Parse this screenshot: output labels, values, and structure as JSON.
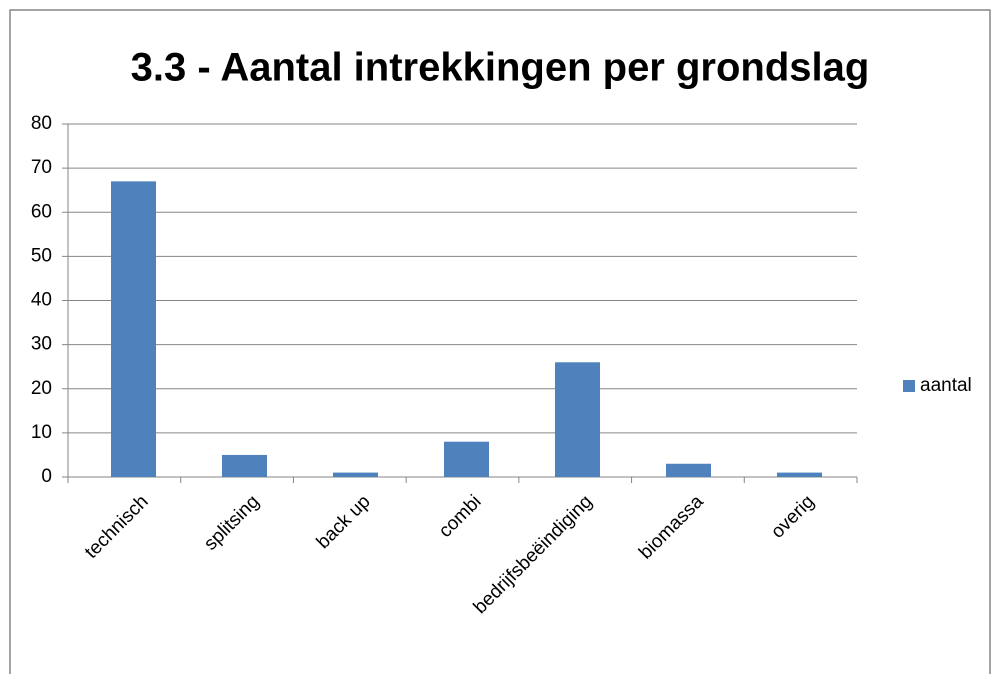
{
  "chart_data": {
    "type": "bar",
    "title": "3.3 - Aantal intrekkingen per grondslag",
    "categories": [
      "technisch",
      "splitsing",
      "back up",
      "combi",
      "bedrijfsbeëindiging",
      "biomassa",
      "overig"
    ],
    "series": [
      {
        "name": "aantal",
        "color": "#4f81bd",
        "values": [
          67,
          5,
          1,
          8,
          26,
          3,
          1
        ]
      }
    ],
    "ylim": [
      0,
      80
    ],
    "yticks": [
      0,
      10,
      20,
      30,
      40,
      50,
      60,
      70,
      80
    ],
    "grid": true,
    "legend": "right"
  }
}
